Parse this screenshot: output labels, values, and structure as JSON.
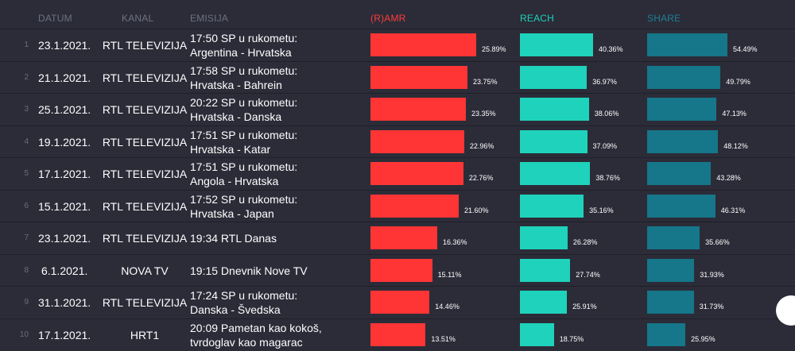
{
  "headers": {
    "datum": "DATUM",
    "kanal": "KANAL",
    "emisija": "EMISIJA",
    "amr": "(R)AMR",
    "reach": "REACH",
    "share": "SHARE"
  },
  "colors": {
    "amr": "#ff3535",
    "reach": "#1fd2bb",
    "share": "#16768a",
    "background": "#2b2c38"
  },
  "chart_data": {
    "type": "table",
    "columns": [
      "DATUM",
      "KANAL",
      "EMISIJA",
      "(R)AMR",
      "REACH",
      "SHARE"
    ],
    "rows": [
      {
        "rank": "1",
        "date": "23.1.2021.",
        "channel": "RTL TELEVIZIJA",
        "line1": "17:50 SP u rukometu:",
        "line2": "Argentina - Hrvatska",
        "amr": 25.89,
        "amr_label": "25.89%",
        "reach": 40.36,
        "reach_label": "40.36%",
        "share": 54.49,
        "share_label": "54.49%"
      },
      {
        "rank": "2",
        "date": "21.1.2021.",
        "channel": "RTL TELEVIZIJA",
        "line1": "17:58 SP u rukometu:",
        "line2": "Hrvatska - Bahrein",
        "amr": 23.75,
        "amr_label": "23.75%",
        "reach": 36.97,
        "reach_label": "36.97%",
        "share": 49.79,
        "share_label": "49.79%"
      },
      {
        "rank": "3",
        "date": "25.1.2021.",
        "channel": "RTL TELEVIZIJA",
        "line1": "20:22 SP u rukometu:",
        "line2": "Hrvatska - Danska",
        "amr": 23.35,
        "amr_label": "23.35%",
        "reach": 38.06,
        "reach_label": "38.06%",
        "share": 47.13,
        "share_label": "47.13%"
      },
      {
        "rank": "4",
        "date": "19.1.2021.",
        "channel": "RTL TELEVIZIJA",
        "line1": "17:51 SP u rukometu:",
        "line2": "Hrvatska - Katar",
        "amr": 22.96,
        "amr_label": "22.96%",
        "reach": 37.09,
        "reach_label": "37.09%",
        "share": 48.12,
        "share_label": "48.12%"
      },
      {
        "rank": "5",
        "date": "17.1.2021.",
        "channel": "RTL TELEVIZIJA",
        "line1": "17:51 SP u rukometu:",
        "line2": "Angola - Hrvatska",
        "amr": 22.76,
        "amr_label": "22.76%",
        "reach": 38.76,
        "reach_label": "38.76%",
        "share": 43.28,
        "share_label": "43.28%"
      },
      {
        "rank": "6",
        "date": "15.1.2021.",
        "channel": "RTL TELEVIZIJA",
        "line1": "17:52 SP u rukometu:",
        "line2": "Hrvatska - Japan",
        "amr": 21.6,
        "amr_label": "21.60%",
        "reach": 35.16,
        "reach_label": "35.16%",
        "share": 46.31,
        "share_label": "46.31%"
      },
      {
        "rank": "7",
        "date": "23.1.2021.",
        "channel": "RTL TELEVIZIJA",
        "line1": "19:34 RTL Danas",
        "line2": "",
        "amr": 16.36,
        "amr_label": "16.36%",
        "reach": 26.28,
        "reach_label": "26.28%",
        "share": 35.66,
        "share_label": "35.66%"
      },
      {
        "rank": "8",
        "date": "6.1.2021.",
        "channel": "NOVA TV",
        "line1": "19:15 Dnevnik Nove TV",
        "line2": "",
        "amr": 15.11,
        "amr_label": "15.11%",
        "reach": 27.74,
        "reach_label": "27.74%",
        "share": 31.93,
        "share_label": "31.93%"
      },
      {
        "rank": "9",
        "date": "31.1.2021.",
        "channel": "RTL TELEVIZIJA",
        "line1": "17:24 SP u rukometu:",
        "line2": "Danska - Švedska",
        "amr": 14.46,
        "amr_label": "14.46%",
        "reach": 25.91,
        "reach_label": "25.91%",
        "share": 31.73,
        "share_label": "31.73%"
      },
      {
        "rank": "10",
        "date": "17.1.2021.",
        "channel": "HRT1",
        "line1": "20:09 Pametan kao kokoš,",
        "line2": "tvrdoglav kao magarac",
        "amr": 13.51,
        "amr_label": "13.51%",
        "reach": 18.75,
        "reach_label": "18.75%",
        "share": 25.95,
        "share_label": "25.95%"
      }
    ]
  }
}
